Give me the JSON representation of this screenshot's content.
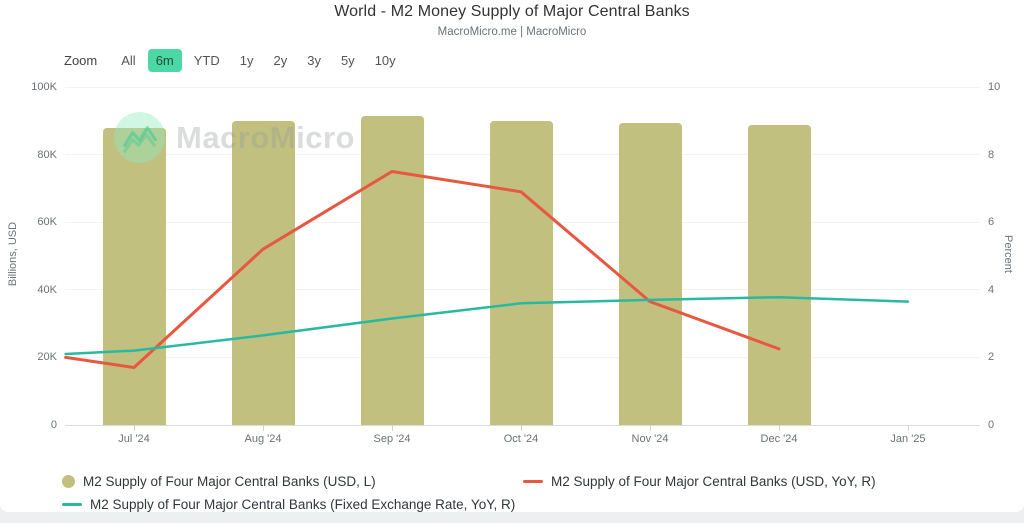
{
  "header": {
    "title": "World - M2 Money Supply of Major Central Banks",
    "subtitle": "MacroMicro.me | MacroMicro"
  },
  "toolbar": {
    "zoom_label": "Zoom",
    "ranges": [
      {
        "label": "All",
        "active": false
      },
      {
        "label": "6m",
        "active": true
      },
      {
        "label": "YTD",
        "active": false
      },
      {
        "label": "1y",
        "active": false
      },
      {
        "label": "2y",
        "active": false
      },
      {
        "label": "3y",
        "active": false
      },
      {
        "label": "5y",
        "active": false
      },
      {
        "label": "10y",
        "active": false
      }
    ]
  },
  "watermark": {
    "icon": "macromicro-logo-icon",
    "text": "MacroMicro"
  },
  "axes": {
    "left": {
      "title": "Billions, USD",
      "ticks": [
        "0",
        "20K",
        "40K",
        "60K",
        "80K",
        "100K"
      ]
    },
    "right": {
      "title": "Percent",
      "ticks": [
        "0",
        "2",
        "4",
        "6",
        "8",
        "10"
      ]
    },
    "x": {
      "labels": [
        "Jul '24",
        "Aug '24",
        "Sep '24",
        "Oct '24",
        "Nov '24",
        "Dec '24",
        "Jan '25"
      ]
    }
  },
  "chart_data": {
    "type": "combo",
    "title": "World - M2 Money Supply of Major Central Banks",
    "subtitle": "MacroMicro.me | MacroMicro",
    "categories": [
      "Jul '24",
      "Aug '24",
      "Sep '24",
      "Oct '24",
      "Nov '24",
      "Dec '24",
      "Jan '25"
    ],
    "left_axis": {
      "label": "Billions, USD",
      "ylim": [
        0,
        100000
      ],
      "tick_step": 20000
    },
    "right_axis": {
      "label": "Percent",
      "ylim": [
        0,
        10
      ],
      "tick_step": 2
    },
    "grid": true,
    "legend_position": "bottom",
    "series": [
      {
        "id": "m2-usd-bars",
        "name": "M2 Supply of Four Major Central Banks (USD, L)",
        "type": "bar",
        "axis": "left",
        "color": "#c1c07e",
        "points": [
          {
            "x": 0,
            "y": 87800
          },
          {
            "x": 1,
            "y": 90000
          },
          {
            "x": 2,
            "y": 91400
          },
          {
            "x": 3,
            "y": 90000
          },
          {
            "x": 4,
            "y": 89300
          },
          {
            "x": 5,
            "y": 88900
          }
        ]
      },
      {
        "id": "m2-usd-yoy-line",
        "name": "M2 Supply of Four Major Central Banks (USD, YoY, R)",
        "type": "line",
        "axis": "right",
        "color": "#e8573f",
        "points": [
          {
            "x": -0.53,
            "y": 2.0
          },
          {
            "x": 0,
            "y": 1.7
          },
          {
            "x": 1,
            "y": 5.2
          },
          {
            "x": 2,
            "y": 7.5
          },
          {
            "x": 3,
            "y": 6.9
          },
          {
            "x": 4,
            "y": 3.65
          },
          {
            "x": 5,
            "y": 2.25
          }
        ]
      },
      {
        "id": "m2-fx-yoy-line",
        "name": "M2 Supply of Four Major Central Banks (Fixed Exchange Rate, YoY, R)",
        "type": "line",
        "axis": "right",
        "color": "#29b9a0",
        "points": [
          {
            "x": -0.53,
            "y": 2.1
          },
          {
            "x": 0,
            "y": 2.2
          },
          {
            "x": 1,
            "y": 2.65
          },
          {
            "x": 2,
            "y": 3.15
          },
          {
            "x": 3,
            "y": 3.6
          },
          {
            "x": 4,
            "y": 3.7
          },
          {
            "x": 5,
            "y": 3.78
          },
          {
            "x": 6,
            "y": 3.65
          }
        ]
      }
    ]
  },
  "legend": {
    "items": [
      {
        "label": "M2 Supply of Four Major Central Banks (USD, L)",
        "marker": "circle",
        "color": "#c1c07e"
      },
      {
        "label": "M2 Supply of Four Major Central Banks (USD, YoY, R)",
        "marker": "line",
        "color": "#e8573f"
      },
      {
        "label": "M2 Supply of Four Major Central Banks (Fixed Exchange Rate, YoY, R)",
        "marker": "line",
        "color": "#29b9a0"
      }
    ]
  },
  "colors": {
    "bar": "#c1c07e",
    "line_red": "#e8573f",
    "line_teal": "#29b9a0",
    "active_range_bg": "#4bd8a5",
    "gridline": "#f2f3f3",
    "axis_line": "#d9dcdc",
    "text_muted": "#6a7276",
    "text_dark": "#333333"
  }
}
